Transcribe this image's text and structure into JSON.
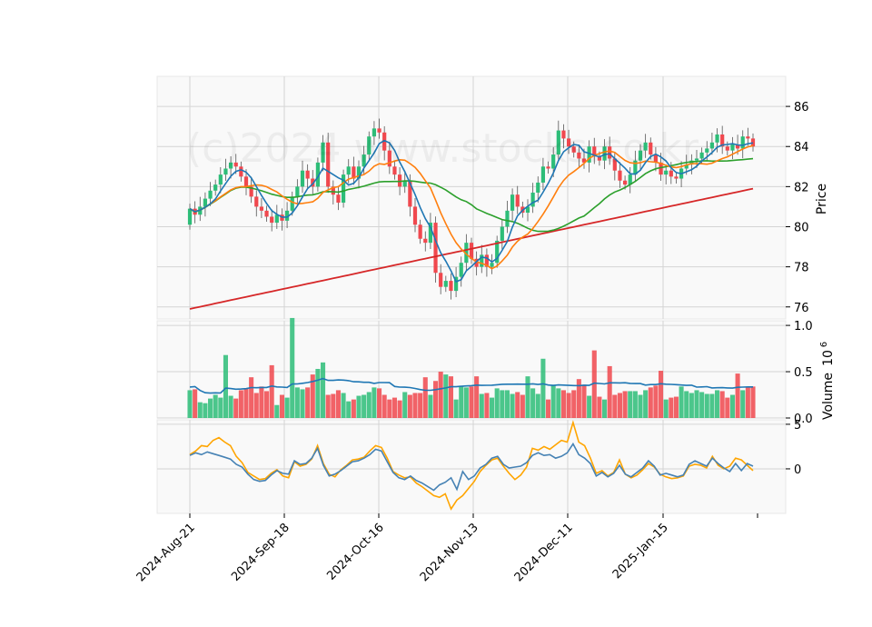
{
  "chart_data": {
    "type": "candlestick",
    "watermark": "(c)2024 www.stocks.co.kr",
    "colors": {
      "up": "#2dbd78",
      "down": "#f0484e",
      "ma_short": "#1f77b4",
      "ma_mid": "#ff7f0e",
      "ma_long": "#2ca02c",
      "ma_200": "#d62728",
      "volume_ma": "#1f77b4",
      "osc_a": "#4682b4",
      "osc_b": "#ffa500",
      "panel_bg": "#f9f9f9",
      "grid": "#d4d4d4"
    },
    "x_ticks": [
      "2024-Aug-21",
      "2024-Sep-18",
      "2024-Oct-16",
      "2024-Nov-13",
      "2024-Dec-11",
      "2025-Jan-15"
    ],
    "price_panel": {
      "ylabel": "Price",
      "ylim": [
        75.4,
        87.5
      ],
      "ticks": [
        76,
        78,
        80,
        82,
        84,
        86
      ]
    },
    "volume_panel": {
      "ylabel": "Volume",
      "exponent_label": "10",
      "exponent_power": "6",
      "ylim": [
        0,
        1.05
      ],
      "ticks": [
        "0.0",
        "0.5",
        "1.0"
      ],
      "tick_values": [
        0,
        0.5,
        1.0
      ]
    },
    "oscillator_panel": {
      "ylim": [
        -5,
        5.5
      ],
      "ticks": [
        "0",
        "5"
      ],
      "tick_values": [
        0,
        5
      ]
    },
    "candles_close": [
      80.9,
      80.6,
      81.0,
      81.4,
      81.8,
      82.1,
      82.6,
      82.9,
      83.2,
      83.0,
      82.5,
      82.0,
      81.5,
      81.0,
      80.8,
      80.5,
      80.2,
      80.6,
      80.3,
      80.8,
      81.5,
      82.0,
      82.8,
      82.4,
      82.0,
      83.2,
      84.2,
      82.0,
      81.6,
      81.2,
      82.6,
      83.0,
      82.4,
      83.0,
      83.6,
      84.5,
      84.9,
      84.7,
      83.8,
      83.0,
      82.6,
      82.0,
      82.3,
      81.0,
      80.1,
      79.4,
      79.2,
      80.2,
      77.7,
      77.0,
      77.3,
      76.8,
      77.5,
      78.2,
      79.2,
      78.4,
      78.0,
      78.6,
      78.0,
      78.2,
      79.3,
      80.0,
      80.8,
      81.6,
      81.0,
      80.7,
      81.0,
      81.7,
      82.2,
      83.0,
      82.9,
      83.6,
      84.8,
      84.4,
      84.0,
      83.7,
      83.4,
      83.2,
      84.0,
      83.5,
      83.3,
      84.0,
      83.4,
      82.8,
      82.3,
      82.1,
      82.6,
      83.3,
      83.8,
      84.2,
      83.6,
      83.2,
      82.6,
      82.8,
      82.5,
      82.4,
      82.9,
      83.1,
      83.3,
      83.4,
      83.7,
      83.9,
      84.2,
      84.6,
      84.0,
      83.8,
      84.1,
      83.9,
      84.5,
      84.4,
      84.0
    ],
    "ma_200_start": 75.9,
    "ma_200_end": 81.9,
    "volume": [
      0.3,
      0.31,
      0.17,
      0.16,
      0.21,
      0.25,
      0.22,
      0.68,
      0.24,
      0.21,
      0.3,
      0.32,
      0.44,
      0.27,
      0.34,
      0.29,
      0.57,
      0.14,
      0.25,
      0.22,
      1.08,
      0.33,
      0.31,
      0.33,
      0.47,
      0.53,
      0.6,
      0.25,
      0.26,
      0.3,
      0.27,
      0.18,
      0.2,
      0.24,
      0.25,
      0.28,
      0.33,
      0.32,
      0.25,
      0.2,
      0.22,
      0.19,
      0.28,
      0.25,
      0.27,
      0.27,
      0.44,
      0.25,
      0.4,
      0.5,
      0.47,
      0.45,
      0.2,
      0.34,
      0.33,
      0.34,
      0.45,
      0.26,
      0.27,
      0.22,
      0.32,
      0.3,
      0.3,
      0.26,
      0.28,
      0.25,
      0.45,
      0.32,
      0.26,
      0.64,
      0.2,
      0.36,
      0.32,
      0.3,
      0.27,
      0.3,
      0.42,
      0.36,
      0.24,
      0.73,
      0.23,
      0.2,
      0.56,
      0.25,
      0.27,
      0.29,
      0.29,
      0.29,
      0.25,
      0.3,
      0.33,
      0.35,
      0.51,
      0.2,
      0.22,
      0.23,
      0.34,
      0.29,
      0.27,
      0.3,
      0.28,
      0.26,
      0.26,
      0.3,
      0.29,
      0.22,
      0.25,
      0.48,
      0.3,
      0.33,
      0.34
    ],
    "osc_a": [
      1.5,
      1.8,
      1.6,
      1.9,
      1.7,
      1.5,
      1.3,
      1.1,
      0.5,
      0.2,
      -0.6,
      -1.2,
      -1.4,
      -1.3,
      -0.7,
      -0.2,
      -0.5,
      -0.6,
      0.9,
      0.5,
      0.6,
      1.2,
      2.3,
      0.4,
      -0.8,
      -0.6,
      -0.2,
      0.3,
      0.8,
      0.9,
      1.2,
      1.6,
      2.2,
      2.0,
      0.8,
      -0.4,
      -1.0,
      -1.2,
      -0.8,
      -1.3,
      -1.6,
      -2.0,
      -2.4,
      -1.8,
      -1.5,
      -1.0,
      -2.3,
      -0.3,
      -1.2,
      -0.8,
      0.1,
      0.5,
      1.2,
      1.4,
      0.5,
      0.1,
      0.2,
      0.3,
      0.7,
      1.5,
      1.8,
      1.5,
      1.6,
      1.2,
      1.4,
      1.8,
      2.8,
      1.6,
      1.2,
      0.6,
      -0.8,
      -0.4,
      -0.9,
      -0.5,
      0.4,
      -0.6,
      -0.9,
      -0.4,
      0.1,
      0.9,
      0.3,
      -0.7,
      -0.5,
      -0.7,
      -0.9,
      -0.7,
      0.5,
      0.9,
      0.6,
      0.3,
      1.2,
      0.6,
      0.1,
      -0.3,
      0.6,
      -0.2,
      0.6,
      0.3
    ],
    "osc_b": [
      1.6,
      2.0,
      2.6,
      2.5,
      3.2,
      3.5,
      3.0,
      2.6,
      1.4,
      0.7,
      -0.4,
      -0.8,
      -1.2,
      -1.1,
      -0.5,
      -0.1,
      -0.8,
      -1.0,
      0.8,
      0.3,
      0.5,
      1.1,
      2.6,
      0.6,
      -0.6,
      -0.9,
      -0.1,
      0.4,
      1.0,
      1.1,
      1.3,
      2.0,
      2.6,
      2.4,
      1.2,
      -0.3,
      -0.7,
      -1.0,
      -0.9,
      -1.6,
      -2.0,
      -2.5,
      -3.0,
      -3.2,
      -2.8,
      -4.5,
      -3.5,
      -3.0,
      -2.2,
      -1.4,
      -0.3,
      0.4,
      1.0,
      1.2,
      0.3,
      -0.5,
      -1.2,
      -0.7,
      0.2,
      2.3,
      2.1,
      2.5,
      2.2,
      2.7,
      3.2,
      3.0,
      5.2,
      3.0,
      2.6,
      1.2,
      -0.5,
      -0.2,
      -0.8,
      -0.4,
      1.0,
      -0.6,
      -1.0,
      -0.7,
      -0.1,
      0.6,
      0.2,
      -0.6,
      -0.9,
      -1.1,
      -1.0,
      -0.8,
      0.3,
      0.5,
      0.4,
      0.1,
      1.4,
      0.4,
      0.0,
      0.3,
      1.2,
      1.0,
      0.4,
      -0.2
    ]
  }
}
